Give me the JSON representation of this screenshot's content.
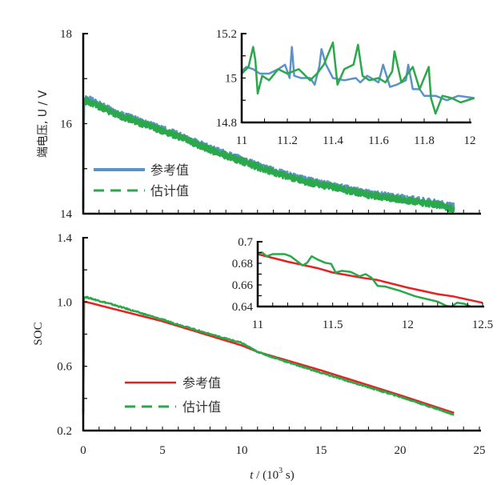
{
  "chart_data": [
    {
      "id": "voltage-main",
      "type": "line",
      "title": "",
      "xlabel": "",
      "ylabel": "端电压, U / V",
      "xlim": [
        0,
        25
      ],
      "ylim": [
        14,
        18
      ],
      "x_ticks": [
        0,
        5,
        10,
        15,
        20,
        25
      ],
      "y_ticks": [
        14,
        16,
        18
      ],
      "y_tick_labels": [
        "14",
        "16",
        "18"
      ],
      "legend": "bottom-left",
      "grid": false,
      "series": [
        {
          "name": "参考值",
          "color": "#5b93c8",
          "style": "solid",
          "x": [
            0,
            0.05,
            0.3,
            2,
            4,
            6,
            8,
            10,
            12,
            14,
            16,
            18,
            20,
            22,
            23.4
          ],
          "y": [
            14.1,
            16.55,
            16.55,
            16.25,
            16.0,
            15.75,
            15.45,
            15.2,
            14.95,
            14.75,
            14.6,
            14.45,
            14.35,
            14.25,
            14.15
          ]
        },
        {
          "name": "估计值",
          "color": "#2aa84a",
          "style": "dashed",
          "x": [
            0,
            0.05,
            0.3,
            2,
            4,
            6,
            8,
            10,
            12,
            14,
            16,
            18,
            20,
            22,
            23.4
          ],
          "y": [
            14.1,
            16.5,
            16.5,
            16.22,
            15.97,
            15.72,
            15.42,
            15.17,
            14.92,
            14.72,
            14.57,
            14.42,
            14.32,
            14.22,
            14.1
          ]
        }
      ],
      "noise_amplitude": 0.08
    },
    {
      "id": "voltage-inset",
      "type": "line",
      "xlim": [
        11,
        12
      ],
      "ylim": [
        14.8,
        15.2
      ],
      "x_ticks": [
        11,
        11.2,
        11.4,
        11.6,
        11.8,
        12
      ],
      "x_tick_labels": [
        "11",
        "11.2",
        "11.4",
        "11.6",
        "11.8",
        "12"
      ],
      "y_ticks": [
        14.8,
        15,
        15.2
      ],
      "y_tick_labels": [
        "14.8",
        "15",
        "15.2"
      ],
      "series": [
        {
          "name": "参考值",
          "color": "#5b93c8",
          "x": [
            11,
            11.02,
            11.05,
            11.08,
            11.12,
            11.16,
            11.19,
            11.21,
            11.22,
            11.23,
            11.26,
            11.3,
            11.32,
            11.34,
            11.35,
            11.37,
            11.4,
            11.45,
            11.5,
            11.52,
            11.55,
            11.6,
            11.62,
            11.65,
            11.68,
            11.72,
            11.73,
            11.75,
            11.78,
            11.8,
            11.85,
            11.9,
            11.95,
            12.02
          ],
          "y": [
            15.03,
            15.05,
            15.04,
            15.02,
            15.02,
            15.04,
            15.06,
            15.0,
            15.14,
            15.01,
            15.0,
            15.0,
            14.97,
            15.05,
            15.13,
            15.06,
            15.0,
            14.99,
            15.0,
            14.98,
            15.01,
            14.98,
            15.06,
            14.96,
            14.97,
            14.99,
            15.06,
            14.95,
            14.95,
            14.92,
            14.92,
            14.9,
            14.92,
            14.91
          ]
        },
        {
          "name": "估计值",
          "color": "#2aa84a",
          "x": [
            11,
            11.03,
            11.05,
            11.06,
            11.07,
            11.09,
            11.12,
            11.16,
            11.2,
            11.25,
            11.3,
            11.33,
            11.36,
            11.4,
            11.42,
            11.45,
            11.49,
            11.51,
            11.53,
            11.56,
            11.6,
            11.63,
            11.66,
            11.67,
            11.7,
            11.75,
            11.78,
            11.82,
            11.83,
            11.85,
            11.88,
            11.92,
            11.96,
            12.02
          ],
          "y": [
            15.02,
            15.05,
            15.14,
            15.08,
            14.93,
            15.01,
            14.99,
            15.04,
            15.02,
            15.04,
            14.99,
            15.02,
            15.06,
            15.16,
            14.97,
            15.04,
            15.06,
            15.15,
            15.01,
            14.99,
            15.0,
            14.98,
            15.03,
            15.12,
            14.98,
            15.05,
            14.95,
            15.05,
            14.91,
            14.84,
            14.92,
            14.91,
            14.89,
            14.91
          ]
        }
      ]
    },
    {
      "id": "soc-main",
      "type": "line",
      "xlabel": "t / (10³ s)",
      "xlabel_parts": {
        "var": "t",
        "unit_pre": " / (10",
        "sup": "3",
        "unit_post": " s)"
      },
      "ylabel": "SOC",
      "xlim": [
        0,
        25
      ],
      "ylim": [
        0.2,
        1.4
      ],
      "x_ticks": [
        0,
        5,
        10,
        15,
        20,
        25
      ],
      "x_tick_labels": [
        "0",
        "5",
        "10",
        "15",
        "20",
        "25"
      ],
      "y_ticks": [
        0.2,
        0.6,
        1.0,
        1.4
      ],
      "y_tick_labels": [
        "0.2",
        "0.6",
        "1.0",
        "1.4"
      ],
      "legend": "bottom-left",
      "grid": false,
      "series": [
        {
          "name": "参考值",
          "color": "#e82020",
          "style": "solid",
          "x": [
            0,
            0.05,
            0.2,
            5,
            10,
            11,
            15,
            20,
            23.4
          ],
          "y": [
            0.3,
            1.0,
            1.0,
            0.88,
            0.73,
            0.69,
            0.575,
            0.42,
            0.31
          ]
        },
        {
          "name": "估计值",
          "color": "#2aa84a",
          "style": "dashed",
          "x": [
            0,
            0.05,
            0.2,
            2,
            5,
            8,
            10,
            11,
            12,
            15,
            18,
            20,
            23.4
          ],
          "y": [
            0.3,
            1.03,
            1.03,
            0.98,
            0.89,
            0.8,
            0.745,
            0.69,
            0.655,
            0.56,
            0.47,
            0.41,
            0.3
          ]
        }
      ]
    },
    {
      "id": "soc-inset",
      "type": "line",
      "xlim": [
        11,
        12.5
      ],
      "ylim": [
        0.64,
        0.7
      ],
      "x_ticks": [
        11,
        11.5,
        12,
        12.5
      ],
      "x_tick_labels": [
        "11",
        "11.5",
        "12",
        "12.5"
      ],
      "y_ticks": [
        0.64,
        0.66,
        0.68,
        0.7
      ],
      "y_tick_labels": [
        "0.64",
        "0.66",
        "0.68",
        "0.7"
      ],
      "series": [
        {
          "name": "参考值",
          "color": "#e82020",
          "x": [
            11,
            11.2,
            11.4,
            11.5,
            11.7,
            11.8,
            12.0,
            12.2,
            12.3,
            12.5
          ],
          "y": [
            0.6885,
            0.6815,
            0.6755,
            0.6715,
            0.6665,
            0.6645,
            0.6575,
            0.6515,
            0.6495,
            0.6435
          ]
        },
        {
          "name": "估计值",
          "color": "#2aa84a",
          "x": [
            11,
            11.03,
            11.06,
            11.1,
            11.18,
            11.22,
            11.3,
            11.33,
            11.36,
            11.4,
            11.45,
            11.49,
            11.52,
            11.56,
            11.62,
            11.68,
            11.72,
            11.76,
            11.8,
            11.85,
            11.95,
            12.05,
            12.2,
            12.26,
            12.29,
            12.33,
            12.38,
            12.42
          ],
          "y": [
            0.6895,
            0.69,
            0.6865,
            0.6885,
            0.6885,
            0.6865,
            0.678,
            0.6805,
            0.6865,
            0.6835,
            0.6805,
            0.6795,
            0.6715,
            0.673,
            0.672,
            0.668,
            0.67,
            0.6665,
            0.659,
            0.6585,
            0.6545,
            0.6495,
            0.6445,
            0.6405,
            0.64,
            0.6435,
            0.6425,
            0.64
          ]
        }
      ]
    }
  ],
  "legend_top": {
    "items": [
      {
        "label": "参考值"
      },
      {
        "label": "估计值"
      }
    ]
  },
  "legend_bottom": {
    "items": [
      {
        "label": "参考值"
      },
      {
        "label": "估计值"
      }
    ]
  }
}
